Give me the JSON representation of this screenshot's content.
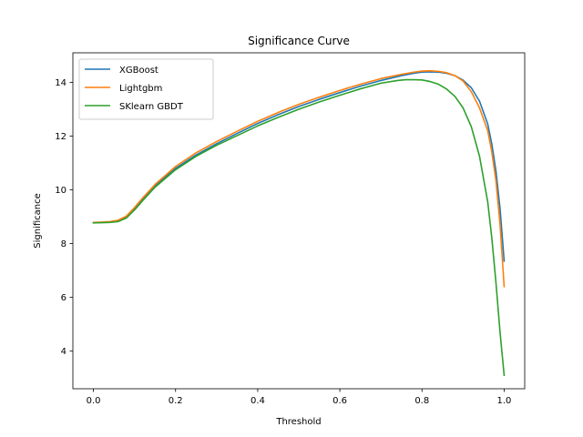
{
  "chart_data": {
    "type": "line",
    "title": "Significance Curve",
    "xlabel": "Threshold",
    "ylabel": "Significance",
    "xlim": [
      -0.05,
      1.05
    ],
    "ylim": [
      2.6,
      15.1
    ],
    "xticks": [
      0.0,
      0.2,
      0.4,
      0.6,
      0.8,
      1.0
    ],
    "xtick_labels": [
      "0.0",
      "0.2",
      "0.4",
      "0.6",
      "0.8",
      "1.0"
    ],
    "yticks": [
      4,
      6,
      8,
      10,
      12,
      14
    ],
    "ytick_labels": [
      "4",
      "6",
      "8",
      "10",
      "12",
      "14"
    ],
    "grid": false,
    "legend_position": "top-left",
    "series": [
      {
        "name": "XGBoost",
        "color": "#1f77b4",
        "x": [
          0.0,
          0.02,
          0.04,
          0.06,
          0.08,
          0.1,
          0.12,
          0.15,
          0.2,
          0.25,
          0.3,
          0.35,
          0.4,
          0.45,
          0.5,
          0.55,
          0.6,
          0.65,
          0.7,
          0.75,
          0.78,
          0.8,
          0.82,
          0.84,
          0.86,
          0.88,
          0.9,
          0.92,
          0.94,
          0.96,
          0.97,
          0.98,
          0.99,
          1.0
        ],
        "y": [
          8.78,
          8.79,
          8.8,
          8.85,
          8.99,
          9.3,
          9.65,
          10.15,
          10.8,
          11.3,
          11.72,
          12.1,
          12.47,
          12.8,
          13.1,
          13.37,
          13.62,
          13.86,
          14.07,
          14.25,
          14.34,
          14.38,
          14.39,
          14.38,
          14.34,
          14.25,
          14.08,
          13.8,
          13.3,
          12.45,
          11.7,
          10.7,
          9.3,
          7.35
        ]
      },
      {
        "name": "Lightgbm",
        "color": "#ff7f0e",
        "x": [
          0.0,
          0.02,
          0.04,
          0.06,
          0.08,
          0.1,
          0.12,
          0.15,
          0.2,
          0.25,
          0.3,
          0.35,
          0.4,
          0.45,
          0.5,
          0.55,
          0.6,
          0.65,
          0.7,
          0.75,
          0.78,
          0.8,
          0.82,
          0.84,
          0.86,
          0.88,
          0.9,
          0.92,
          0.94,
          0.96,
          0.97,
          0.98,
          0.99,
          1.0
        ],
        "y": [
          8.79,
          8.8,
          8.82,
          8.87,
          9.02,
          9.34,
          9.7,
          10.2,
          10.87,
          11.38,
          11.8,
          12.18,
          12.55,
          12.88,
          13.18,
          13.45,
          13.7,
          13.93,
          14.14,
          14.3,
          14.38,
          14.42,
          14.43,
          14.41,
          14.36,
          14.25,
          14.05,
          13.65,
          13.05,
          12.2,
          11.4,
          10.35,
          8.7,
          6.4
        ]
      },
      {
        "name": "SKlearn GBDT",
        "color": "#2ca02c",
        "x": [
          0.0,
          0.02,
          0.04,
          0.06,
          0.08,
          0.1,
          0.12,
          0.15,
          0.2,
          0.25,
          0.3,
          0.35,
          0.4,
          0.45,
          0.5,
          0.55,
          0.6,
          0.65,
          0.7,
          0.74,
          0.76,
          0.78,
          0.8,
          0.82,
          0.84,
          0.86,
          0.88,
          0.9,
          0.92,
          0.94,
          0.96,
          0.97,
          0.98,
          0.99,
          1.0
        ],
        "y": [
          8.77,
          8.78,
          8.79,
          8.82,
          8.95,
          9.25,
          9.6,
          10.1,
          10.75,
          11.25,
          11.66,
          12.02,
          12.38,
          12.7,
          13.0,
          13.27,
          13.52,
          13.76,
          13.97,
          14.07,
          14.1,
          14.1,
          14.09,
          14.03,
          13.93,
          13.75,
          13.48,
          13.05,
          12.35,
          11.25,
          9.55,
          8.2,
          6.55,
          4.7,
          3.1
        ]
      }
    ]
  }
}
